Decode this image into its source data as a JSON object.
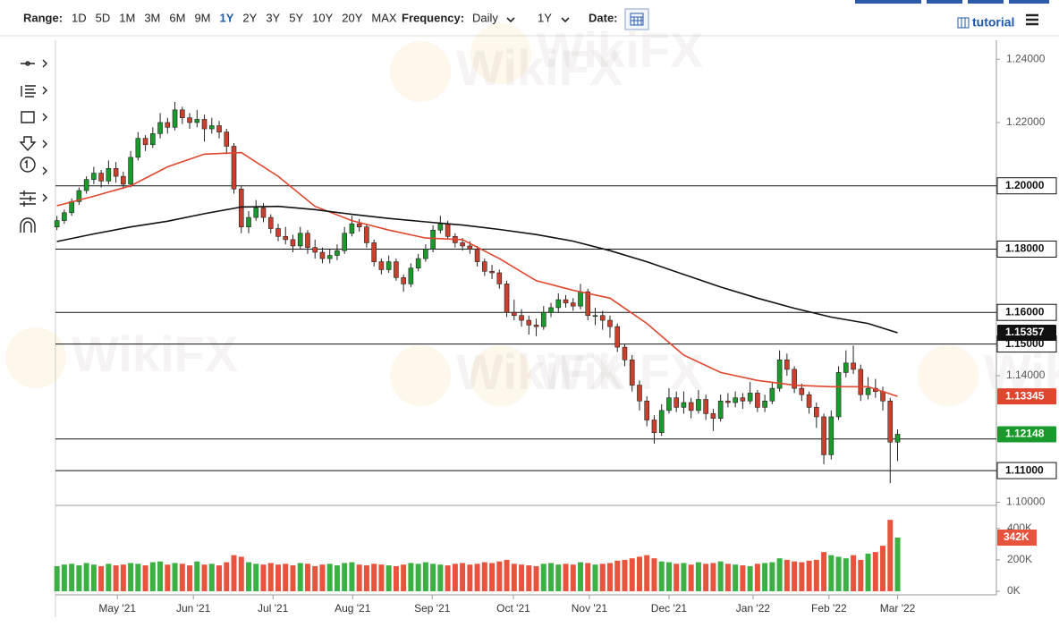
{
  "toolbar": {
    "range_label": "Range:",
    "ranges": [
      "1D",
      "5D",
      "1M",
      "3M",
      "6M",
      "9M",
      "1Y",
      "2Y",
      "3Y",
      "5Y",
      "10Y",
      "20Y",
      "MAX"
    ],
    "active_range": 6,
    "frequency_label": "Frequency:",
    "frequency": "Daily",
    "period": "1Y",
    "date_label": "Date:",
    "tutorial": "tutorial"
  },
  "watermark": "WikiFX",
  "chart_data": {
    "type": "candlestick",
    "up_color": "#1a9a2c",
    "down_color": "#c9402e",
    "xlim": [
      -0.2,
      127.4
    ],
    "xticks": [
      {
        "value": 8.2,
        "label": "May '21"
      },
      {
        "value": 18.5,
        "label": "Jun '21"
      },
      {
        "value": 29.3,
        "label": "Jul '21"
      },
      {
        "value": 40.1,
        "label": "Aug '21"
      },
      {
        "value": 50.9,
        "label": "Sep '21"
      },
      {
        "value": 61.9,
        "label": "Oct '21"
      },
      {
        "value": 72.2,
        "label": "Nov '21"
      },
      {
        "value": 83,
        "label": "Dec '21"
      },
      {
        "value": 94.4,
        "label": "Jan '22"
      },
      {
        "value": 104.7,
        "label": "Feb '22"
      },
      {
        "value": 114,
        "label": "Mar '22"
      }
    ],
    "ylim": [
      1.099,
      1.246
    ],
    "yticks": [
      {
        "value": 1.24,
        "label": "1.24000"
      },
      {
        "value": 1.22,
        "label": "1.22000"
      },
      {
        "value": 1.14,
        "label": "1.14000"
      },
      {
        "value": 1.1,
        "label": "1.10000"
      }
    ],
    "hlines": [
      {
        "value": 1.2,
        "label": "1.20000"
      },
      {
        "value": 1.18,
        "label": "1.18000"
      },
      {
        "value": 1.16,
        "label": "1.16000"
      },
      {
        "value": 1.15,
        "label": "1.15000"
      },
      {
        "value": 1.12
      },
      {
        "value": 1.11,
        "label": "1.11000"
      }
    ],
    "candles": [
      [
        1.187,
        1.1905,
        1.186,
        1.189
      ],
      [
        1.189,
        1.1925,
        1.188,
        1.1915
      ],
      [
        1.1915,
        1.196,
        1.1905,
        1.195
      ],
      [
        1.195,
        1.1995,
        1.194,
        1.1985
      ],
      [
        1.1985,
        1.203,
        1.1975,
        1.202
      ],
      [
        1.202,
        1.206,
        1.2005,
        1.204
      ],
      [
        1.204,
        1.205,
        1.1995,
        1.2015
      ],
      [
        1.2015,
        1.208,
        1.2005,
        1.2055
      ],
      [
        1.2055,
        1.2075,
        1.201,
        1.203
      ],
      [
        1.203,
        1.2045,
        1.199,
        1.2005
      ],
      [
        1.2005,
        1.211,
        1.1995,
        1.209
      ],
      [
        1.209,
        1.217,
        1.208,
        1.215
      ],
      [
        1.215,
        1.216,
        1.211,
        1.213
      ],
      [
        1.213,
        1.2185,
        1.212,
        1.2165
      ],
      [
        1.2165,
        1.223,
        1.215,
        1.22
      ],
      [
        1.22,
        1.2215,
        1.2165,
        1.2185
      ],
      [
        1.2185,
        1.2265,
        1.2175,
        1.224
      ],
      [
        1.224,
        1.225,
        1.2195,
        1.2215
      ],
      [
        1.2215,
        1.223,
        1.218,
        1.22
      ],
      [
        1.22,
        1.224,
        1.2185,
        1.221
      ],
      [
        1.221,
        1.2225,
        1.214,
        1.218
      ],
      [
        1.218,
        1.2215,
        1.2165,
        1.219
      ],
      [
        1.219,
        1.2205,
        1.215,
        1.217
      ],
      [
        1.217,
        1.218,
        1.21,
        1.2125
      ],
      [
        1.2125,
        1.2135,
        1.1975,
        1.199
      ],
      [
        1.199,
        1.2,
        1.185,
        1.187
      ],
      [
        1.187,
        1.192,
        1.185,
        1.19
      ],
      [
        1.19,
        1.1955,
        1.189,
        1.193
      ],
      [
        1.193,
        1.1945,
        1.1885,
        1.19
      ],
      [
        1.19,
        1.191,
        1.185,
        1.1865
      ],
      [
        1.1865,
        1.188,
        1.1825,
        1.184
      ],
      [
        1.184,
        1.187,
        1.1815,
        1.183
      ],
      [
        1.183,
        1.1845,
        1.179,
        1.181
      ],
      [
        1.181,
        1.187,
        1.18,
        1.185
      ],
      [
        1.185,
        1.186,
        1.1785,
        1.1805
      ],
      [
        1.1805,
        1.183,
        1.177,
        1.179
      ],
      [
        1.179,
        1.1805,
        1.1755,
        1.177
      ],
      [
        1.177,
        1.18,
        1.1755,
        1.178
      ],
      [
        1.178,
        1.1815,
        1.1765,
        1.1795
      ],
      [
        1.1795,
        1.187,
        1.1785,
        1.185
      ],
      [
        1.185,
        1.1905,
        1.184,
        1.188
      ],
      [
        1.188,
        1.1895,
        1.1855,
        1.187
      ],
      [
        1.187,
        1.188,
        1.1805,
        1.182
      ],
      [
        1.182,
        1.183,
        1.1745,
        1.176
      ],
      [
        1.176,
        1.177,
        1.172,
        1.1735
      ],
      [
        1.1735,
        1.178,
        1.1725,
        1.176
      ],
      [
        1.176,
        1.177,
        1.17,
        1.171
      ],
      [
        1.171,
        1.172,
        1.1665,
        1.169
      ],
      [
        1.169,
        1.1755,
        1.168,
        1.174
      ],
      [
        1.174,
        1.1785,
        1.173,
        1.177
      ],
      [
        1.177,
        1.1815,
        1.176,
        1.18
      ],
      [
        1.18,
        1.1875,
        1.179,
        1.186
      ],
      [
        1.186,
        1.1905,
        1.185,
        1.188
      ],
      [
        1.188,
        1.189,
        1.183,
        1.184
      ],
      [
        1.184,
        1.185,
        1.1805,
        1.182
      ],
      [
        1.182,
        1.1835,
        1.1795,
        1.181
      ],
      [
        1.181,
        1.1825,
        1.1785,
        1.18
      ],
      [
        1.18,
        1.181,
        1.1745,
        1.176
      ],
      [
        1.176,
        1.177,
        1.1715,
        1.173
      ],
      [
        1.173,
        1.175,
        1.1705,
        1.1725
      ],
      [
        1.1725,
        1.1735,
        1.1675,
        1.169
      ],
      [
        1.169,
        1.17,
        1.1585,
        1.16
      ],
      [
        1.16,
        1.164,
        1.1575,
        1.159
      ],
      [
        1.159,
        1.161,
        1.1555,
        1.1575
      ],
      [
        1.1575,
        1.159,
        1.153,
        1.156
      ],
      [
        1.156,
        1.158,
        1.1525,
        1.1555
      ],
      [
        1.1555,
        1.162,
        1.1545,
        1.16
      ],
      [
        1.16,
        1.163,
        1.1585,
        1.1615
      ],
      [
        1.1615,
        1.166,
        1.16,
        1.164
      ],
      [
        1.164,
        1.1655,
        1.1615,
        1.163
      ],
      [
        1.163,
        1.1645,
        1.1605,
        1.162
      ],
      [
        1.162,
        1.169,
        1.161,
        1.1665
      ],
      [
        1.1665,
        1.1675,
        1.1575,
        1.159
      ],
      [
        1.159,
        1.1615,
        1.156,
        1.159
      ],
      [
        1.159,
        1.1605,
        1.1545,
        1.1575
      ],
      [
        1.1575,
        1.159,
        1.152,
        1.1555
      ],
      [
        1.1555,
        1.1565,
        1.1475,
        1.149
      ],
      [
        1.149,
        1.15,
        1.143,
        1.145
      ],
      [
        1.145,
        1.1465,
        1.135,
        1.137
      ],
      [
        1.137,
        1.1385,
        1.129,
        1.132
      ],
      [
        1.132,
        1.1335,
        1.124,
        1.126
      ],
      [
        1.126,
        1.1275,
        1.1185,
        1.122
      ],
      [
        1.122,
        1.131,
        1.121,
        1.129
      ],
      [
        1.129,
        1.136,
        1.128,
        1.133
      ],
      [
        1.133,
        1.135,
        1.1285,
        1.13
      ],
      [
        1.13,
        1.135,
        1.128,
        1.1315
      ],
      [
        1.1315,
        1.133,
        1.1265,
        1.129
      ],
      [
        1.129,
        1.1355,
        1.128,
        1.1325
      ],
      [
        1.1325,
        1.134,
        1.126,
        1.128
      ],
      [
        1.128,
        1.1295,
        1.1225,
        1.1265
      ],
      [
        1.1265,
        1.134,
        1.1255,
        1.132
      ],
      [
        1.132,
        1.1345,
        1.13,
        1.1315
      ],
      [
        1.1315,
        1.135,
        1.13,
        1.133
      ],
      [
        1.133,
        1.1345,
        1.1295,
        1.132
      ],
      [
        1.132,
        1.138,
        1.131,
        1.1345
      ],
      [
        1.1345,
        1.1355,
        1.1285,
        1.13
      ],
      [
        1.13,
        1.134,
        1.1285,
        1.132
      ],
      [
        1.132,
        1.138,
        1.131,
        1.136
      ],
      [
        1.136,
        1.148,
        1.135,
        1.145
      ],
      [
        1.145,
        1.147,
        1.14,
        1.142
      ],
      [
        1.142,
        1.143,
        1.1345,
        1.136
      ],
      [
        1.136,
        1.1375,
        1.132,
        1.134
      ],
      [
        1.134,
        1.135,
        1.128,
        1.13
      ],
      [
        1.13,
        1.1315,
        1.1235,
        1.127
      ],
      [
        1.127,
        1.128,
        1.112,
        1.115
      ],
      [
        1.115,
        1.129,
        1.1135,
        1.127
      ],
      [
        1.127,
        1.143,
        1.126,
        1.141
      ],
      [
        1.141,
        1.148,
        1.1395,
        1.144
      ],
      [
        1.144,
        1.1495,
        1.1405,
        1.142
      ],
      [
        1.142,
        1.1435,
        1.132,
        1.134
      ],
      [
        1.134,
        1.1395,
        1.1325,
        1.136
      ],
      [
        1.136,
        1.139,
        1.133,
        1.135
      ],
      [
        1.135,
        1.1365,
        1.129,
        1.132
      ],
      [
        1.132,
        1.133,
        1.106,
        1.119
      ],
      [
        1.119,
        1.123,
        1.113,
        1.12148
      ]
    ],
    "moving_averages": [
      {
        "color": "#e0462e",
        "label_color": "#e0462e",
        "x": [
          0,
          5,
          10,
          15,
          20,
          25,
          30,
          35,
          40,
          45,
          50,
          55,
          60,
          65,
          70,
          75,
          80,
          85,
          90,
          95,
          100,
          105,
          110,
          114
        ],
        "values": [
          1.1937,
          1.1967,
          1.2,
          1.206,
          1.21,
          1.2105,
          1.203,
          1.1935,
          1.189,
          1.186,
          1.1835,
          1.183,
          1.177,
          1.17,
          1.167,
          1.1645,
          1.1565,
          1.1465,
          1.141,
          1.1385,
          1.137,
          1.1365,
          1.1365,
          1.13345
        ]
      },
      {
        "color": "#111111",
        "label_color": "#111111",
        "x": [
          0,
          5,
          10,
          15,
          20,
          25,
          30,
          35,
          40,
          45,
          50,
          55,
          60,
          65,
          70,
          75,
          80,
          85,
          90,
          95,
          100,
          105,
          110,
          114
        ],
        "values": [
          1.1824,
          1.1848,
          1.187,
          1.1888,
          1.1912,
          1.1933,
          1.1935,
          1.1925,
          1.191,
          1.1897,
          1.1886,
          1.1876,
          1.1862,
          1.1846,
          1.1825,
          1.1795,
          1.176,
          1.172,
          1.168,
          1.1645,
          1.1613,
          1.1585,
          1.1565,
          1.15357
        ]
      }
    ],
    "volume": {
      "up_color": "#3cb043",
      "down_color": "#e8533d",
      "label": "342K",
      "label_color": "#e8533d",
      "ylim": [
        0,
        530000
      ],
      "yticks": [
        {
          "value": 400000,
          "label": "400K"
        },
        {
          "value": 200000,
          "label": "200K"
        },
        {
          "value": 0,
          "label": "0K"
        }
      ],
      "values": [
        160000,
        170000,
        175000,
        165000,
        180000,
        170000,
        160000,
        175000,
        165000,
        170000,
        180000,
        175000,
        165000,
        185000,
        190000,
        170000,
        180000,
        175000,
        165000,
        190000,
        170000,
        175000,
        165000,
        185000,
        230000,
        220000,
        185000,
        175000,
        170000,
        180000,
        170000,
        175000,
        165000,
        180000,
        175000,
        160000,
        170000,
        175000,
        165000,
        180000,
        185000,
        170000,
        165000,
        175000,
        170000,
        165000,
        160000,
        170000,
        180000,
        175000,
        185000,
        175000,
        170000,
        165000,
        175000,
        180000,
        170000,
        175000,
        185000,
        180000,
        190000,
        200000,
        175000,
        170000,
        165000,
        160000,
        175000,
        180000,
        170000,
        175000,
        170000,
        185000,
        180000,
        170000,
        175000,
        180000,
        195000,
        200000,
        210000,
        220000,
        230000,
        210000,
        190000,
        185000,
        175000,
        180000,
        170000,
        185000,
        175000,
        180000,
        190000,
        175000,
        170000,
        165000,
        160000,
        175000,
        180000,
        185000,
        210000,
        200000,
        190000,
        185000,
        195000,
        200000,
        250000,
        230000,
        220000,
        210000,
        230000,
        200000,
        240000,
        250000,
        290000,
        455000,
        342000
      ]
    }
  }
}
